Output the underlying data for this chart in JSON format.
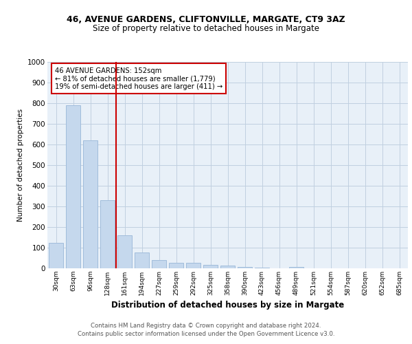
{
  "title1": "46, AVENUE GARDENS, CLIFTONVILLE, MARGATE, CT9 3AZ",
  "title2": "Size of property relative to detached houses in Margate",
  "xlabel": "Distribution of detached houses by size in Margate",
  "ylabel": "Number of detached properties",
  "footer1": "Contains HM Land Registry data © Crown copyright and database right 2024.",
  "footer2": "Contains public sector information licensed under the Open Government Licence v3.0.",
  "annotation_line1": "46 AVENUE GARDENS: 152sqm",
  "annotation_line2": "← 81% of detached houses are smaller (1,779)",
  "annotation_line3": "19% of semi-detached houses are larger (411) →",
  "bar_labels": [
    "30sqm",
    "63sqm",
    "96sqm",
    "128sqm",
    "161sqm",
    "194sqm",
    "227sqm",
    "259sqm",
    "292sqm",
    "325sqm",
    "358sqm",
    "390sqm",
    "423sqm",
    "456sqm",
    "489sqm",
    "521sqm",
    "554sqm",
    "587sqm",
    "620sqm",
    "652sqm",
    "685sqm"
  ],
  "bar_values": [
    125,
    790,
    620,
    330,
    160,
    78,
    40,
    28,
    26,
    18,
    14,
    8,
    5,
    0,
    8,
    0,
    0,
    0,
    0,
    0,
    0
  ],
  "bar_color": "#c5d8ed",
  "bar_edge_color": "#a0bcdb",
  "reference_line_color": "#cc0000",
  "ylim": [
    0,
    1000
  ],
  "yticks": [
    0,
    100,
    200,
    300,
    400,
    500,
    600,
    700,
    800,
    900,
    1000
  ],
  "annotation_box_color": "#cc0000",
  "background_color": "#e8f0f8",
  "grid_color": "#c0cfe0"
}
